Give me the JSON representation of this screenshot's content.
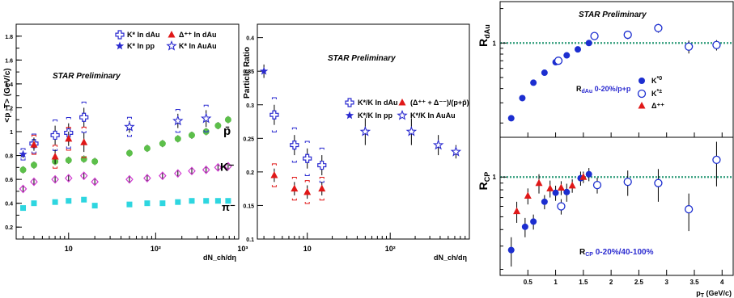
{
  "chart_data": [
    {
      "type": "scatter",
      "panel": "mean-pt-vs-multiplicity",
      "watermark": "STAR Preliminary",
      "xlabel": "dN_ch/dη",
      "ylabel": "<p_T> (GeV/c)",
      "xscale": "log",
      "xlim": [
        2.5,
        900
      ],
      "ylim": [
        0.1,
        1.9
      ],
      "x_tick_labels": [
        "10",
        "10²",
        "10³"
      ],
      "y_tick_labels": [
        "0.2",
        "0.4",
        "0.6",
        "0.8",
        "1",
        "1.2",
        "1.4",
        "1.6",
        "1.8"
      ],
      "legend_position": "top-right",
      "legend": [
        {
          "label": "K* In dAu",
          "marker": "open-cross",
          "color": "#2a2ad0"
        },
        {
          "label": "Δ⁺⁺ In dAu",
          "marker": "filled-triangle",
          "color": "#e01818"
        },
        {
          "label": "K* In pp",
          "marker": "filled-star",
          "color": "#2a2ad0"
        },
        {
          "label": "K* In AuAu",
          "marker": "open-star",
          "color": "#2a2ad0"
        }
      ],
      "curve_labels": [
        "p̄",
        "K⁻",
        "π⁻"
      ],
      "series": [
        {
          "name": "p̄",
          "marker": "filled-circle",
          "color": "#5cbf4a",
          "x": [
            3,
            4,
            7,
            10,
            15,
            20,
            50,
            80,
            120,
            180,
            260,
            380,
            520,
            680
          ],
          "y": [
            0.68,
            0.72,
            0.75,
            0.76,
            0.77,
            0.75,
            0.82,
            0.86,
            0.9,
            0.94,
            0.97,
            1.0,
            1.05,
            1.1
          ]
        },
        {
          "name": "K⁻",
          "marker": "open-diamond",
          "color": "#d23ad2",
          "x": [
            3,
            4,
            7,
            10,
            15,
            20,
            50,
            80,
            120,
            180,
            260,
            380,
            520,
            680
          ],
          "y": [
            0.52,
            0.58,
            0.6,
            0.61,
            0.63,
            0.58,
            0.6,
            0.61,
            0.63,
            0.65,
            0.67,
            0.68,
            0.7,
            0.71
          ]
        },
        {
          "name": "π⁻",
          "marker": "filled-square",
          "color": "#2ed6e0",
          "x": [
            3,
            4,
            7,
            10,
            15,
            20,
            50,
            80,
            120,
            180,
            260,
            380,
            520,
            680
          ],
          "y": [
            0.36,
            0.4,
            0.41,
            0.42,
            0.43,
            0.38,
            0.39,
            0.4,
            0.4,
            0.41,
            0.42,
            0.42,
            0.42,
            0.42
          ]
        },
        {
          "name": "K* In dAu",
          "marker": "open-cross",
          "color": "#2a2ad0",
          "x": [
            4,
            7,
            10,
            15
          ],
          "y": [
            0.9,
            0.97,
            0.99,
            1.12
          ],
          "err": [
            0.05,
            0.08,
            0.08,
            0.08
          ]
        },
        {
          "name": "Δ⁺⁺ In dAu",
          "marker": "filled-triangle",
          "color": "#e01818",
          "x": [
            4,
            7,
            10,
            15
          ],
          "y": [
            0.89,
            0.79,
            0.94,
            0.91
          ],
          "err": [
            0.05,
            0.06,
            0.06,
            0.08
          ]
        },
        {
          "name": "K* In pp",
          "marker": "filled-star",
          "color": "#2a2ad0",
          "x": [
            3
          ],
          "y": [
            0.81
          ],
          "err": [
            0.03
          ]
        },
        {
          "name": "K* In AuAu",
          "marker": "open-star",
          "color": "#2a2ad0",
          "x": [
            50,
            180,
            380
          ],
          "y": [
            1.04,
            1.09,
            1.11
          ],
          "err": [
            0.05,
            0.06,
            0.07
          ]
        }
      ]
    },
    {
      "type": "scatter",
      "panel": "particle-ratio-vs-multiplicity",
      "watermark": "STAR Preliminary",
      "xlabel": "dN_ch/dη",
      "ylabel": "Particle Ratio",
      "xscale": "log",
      "xlim": [
        2.5,
        900
      ],
      "ylim": [
        0.1,
        0.42
      ],
      "x_tick_labels": [
        "10",
        "10²"
      ],
      "y_tick_labels": [
        "0.1",
        "0.15",
        "0.2",
        "0.25",
        "0.3",
        "0.35",
        "0.4"
      ],
      "legend_position": "right",
      "legend": [
        {
          "label": "K*/K In dAu",
          "marker": "open-cross",
          "color": "#2a2ad0"
        },
        {
          "label": "(Δ⁺⁺ + Δ⁻⁻)/(p+p̄)",
          "marker": "filled-triangle",
          "color": "#e01818"
        },
        {
          "label": "K*/K In pp",
          "marker": "filled-star",
          "color": "#2a2ad0"
        },
        {
          "label": "K*/K In AuAu",
          "marker": "open-star",
          "color": "#2a2ad0"
        }
      ],
      "series": [
        {
          "name": "K*/K In pp",
          "marker": "filled-star",
          "color": "#2a2ad0",
          "x": [
            3
          ],
          "y": [
            0.35
          ],
          "err": [
            0.01
          ]
        },
        {
          "name": "K*/K In dAu",
          "marker": "open-cross",
          "color": "#2a2ad0",
          "x": [
            4,
            7,
            10,
            15
          ],
          "y": [
            0.285,
            0.24,
            0.22,
            0.21
          ],
          "err": [
            0.015,
            0.015,
            0.015,
            0.015
          ]
        },
        {
          "name": "(Δ⁺⁺ + Δ⁻⁻)/(p+p̄)",
          "marker": "filled-triangle",
          "color": "#e01818",
          "x": [
            4,
            7,
            10,
            15
          ],
          "y": [
            0.195,
            0.175,
            0.17,
            0.175
          ],
          "err": [
            0.01,
            0.01,
            0.01,
            0.01
          ]
        },
        {
          "name": "K*/K In AuAu",
          "marker": "open-star",
          "color": "#2a2ad0",
          "x": [
            50,
            180,
            380,
            620
          ],
          "y": [
            0.26,
            0.26,
            0.24,
            0.23
          ],
          "err": [
            0.02,
            0.02,
            0.015,
            0.01
          ]
        }
      ]
    },
    {
      "type": "scatter",
      "panel": "rdau",
      "watermark": "STAR Preliminary",
      "ylabel": "R_dAu",
      "yscale": "log",
      "xlim": [
        0,
        4.2
      ],
      "ylim": [
        0.15,
        2.3
      ],
      "y_tick_labels": [
        "1"
      ],
      "reference_line": 1,
      "annotation": "R_dAu 0-20%/p+p",
      "legend_position": "right",
      "legend": [
        {
          "label": "K*0",
          "marker": "filled-circle",
          "color": "#1c2ed0"
        },
        {
          "label": "K*±",
          "marker": "open-circle",
          "color": "#1c2ed0"
        },
        {
          "label": "Δ⁺⁺",
          "marker": "filled-triangle",
          "color": "#e01818"
        }
      ],
      "series": [
        {
          "name": "K*0",
          "marker": "filled-circle",
          "color": "#1c2ed0",
          "x": [
            0.2,
            0.4,
            0.6,
            0.8,
            1.0,
            1.2,
            1.4,
            1.6
          ],
          "y": [
            0.22,
            0.33,
            0.45,
            0.55,
            0.68,
            0.78,
            0.88,
            1.0
          ]
        },
        {
          "name": "K*±",
          "marker": "open-circle",
          "color": "#1c2ed0",
          "x": [
            1.05,
            1.7,
            2.3,
            2.85,
            3.4,
            3.9
          ],
          "y": [
            0.7,
            1.15,
            1.18,
            1.35,
            0.93,
            0.96
          ],
          "err": [
            0.05,
            0.08,
            0.1,
            0.12,
            0.12,
            0.1
          ]
        }
      ]
    },
    {
      "type": "scatter",
      "panel": "rcp",
      "ylabel": "R_CP",
      "xlabel": "p_T (GeV/c)",
      "yscale": "log",
      "xlim": [
        0,
        4.2
      ],
      "ylim": [
        0.18,
        2.0
      ],
      "x_tick_labels": [
        "0.5",
        "1",
        "1.5",
        "2",
        "2.5",
        "3",
        "3.5",
        "4"
      ],
      "y_tick_labels": [
        "1"
      ],
      "reference_line": 1,
      "annotation": "R_CP 0-20%/40-100%",
      "series": [
        {
          "name": "K*0",
          "marker": "filled-circle",
          "color": "#1c2ed0",
          "x": [
            0.2,
            0.45,
            0.6,
            0.8,
            1.0,
            1.2,
            1.45,
            1.6
          ],
          "y": [
            0.28,
            0.42,
            0.46,
            0.65,
            0.76,
            0.77,
            0.98,
            1.05
          ],
          "err": [
            0.07,
            0.07,
            0.06,
            0.08,
            0.1,
            0.12,
            0.12,
            0.12
          ]
        },
        {
          "name": "K*±",
          "marker": "open-circle",
          "color": "#1c2ed0",
          "x": [
            1.1,
            1.75,
            2.3,
            2.85,
            3.4,
            3.9
          ],
          "y": [
            0.6,
            0.87,
            0.92,
            0.9,
            0.57,
            1.35
          ],
          "err": [
            0.08,
            0.12,
            0.2,
            0.25,
            0.18,
            0.5
          ]
        },
        {
          "name": "Δ⁺⁺",
          "marker": "filled-triangle",
          "color": "#e01818",
          "x": [
            0.3,
            0.5,
            0.7,
            0.9,
            1.1,
            1.3,
            1.5
          ],
          "y": [
            0.55,
            0.72,
            0.9,
            0.82,
            0.83,
            0.86,
            1.0
          ],
          "err": [
            0.1,
            0.1,
            0.15,
            0.12,
            0.1,
            0.1,
            0.1
          ]
        }
      ]
    }
  ]
}
